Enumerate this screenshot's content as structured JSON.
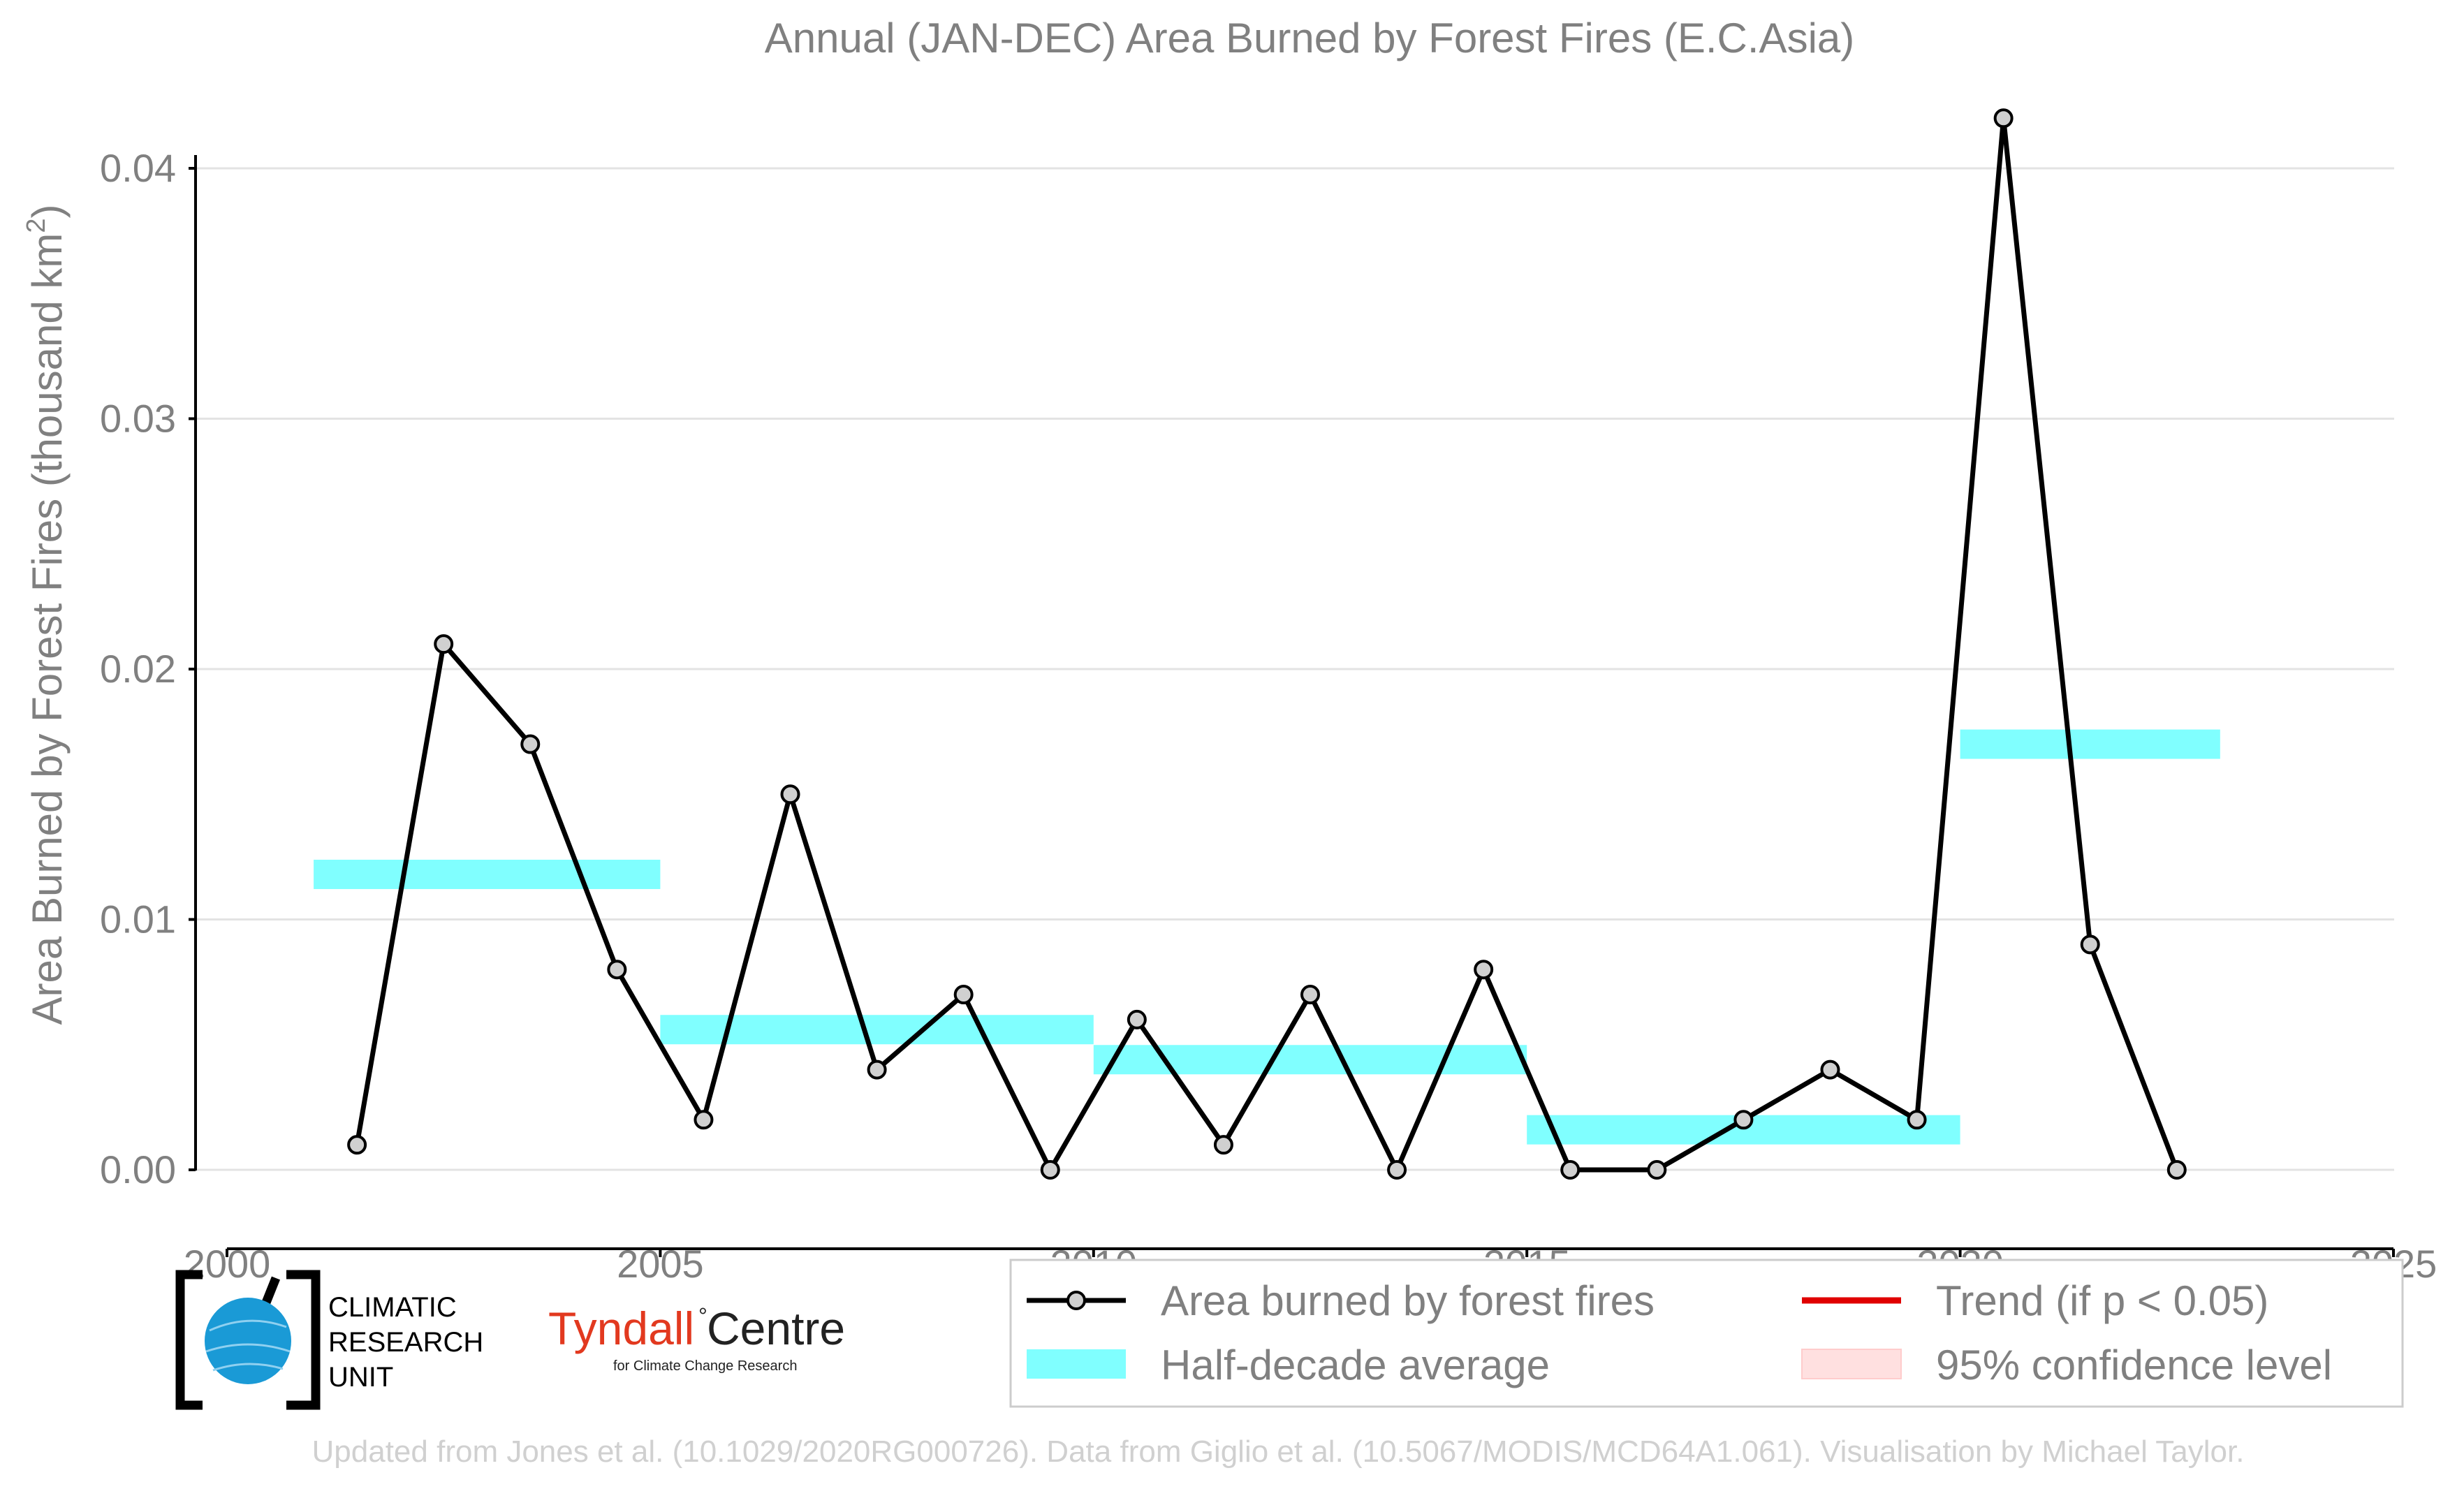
{
  "chart_data": {
    "type": "line",
    "title": "Annual (JAN-DEC) Area Burned by Forest Fires (E.C.Asia)",
    "ylabel": "Area Burned by Forest Fires (thousand km",
    "ylabel_sup": "2",
    "ylabel_close": ")",
    "xlim": [
      2000,
      2025
    ],
    "ylim": [
      -0.0035,
      0.043
    ],
    "x_ticks": [
      2000,
      2005,
      2010,
      2015,
      2020,
      2025
    ],
    "x_tick_labels": [
      "2000",
      "2005",
      "2010",
      "2015",
      "2020",
      "2025"
    ],
    "y_ticks": [
      0.0,
      0.01,
      0.02,
      0.03,
      0.04
    ],
    "y_tick_labels": [
      "0.00",
      "0.01",
      "0.02",
      "0.03",
      "0.04"
    ],
    "grid": true,
    "series": [
      {
        "name": "Area burned by forest fires",
        "color": "#000000",
        "marker_fill": "#d0d0d0",
        "x": [
          2001.5,
          2002.5,
          2003.5,
          2004.5,
          2005.5,
          2006.5,
          2007.5,
          2008.5,
          2009.5,
          2010.5,
          2011.5,
          2012.5,
          2013.5,
          2014.5,
          2015.5,
          2016.5,
          2017.5,
          2018.5,
          2019.5,
          2020.5,
          2021.5,
          2022.5
        ],
        "values": [
          0.001,
          0.021,
          0.017,
          0.008,
          0.002,
          0.015,
          0.004,
          0.007,
          0.0,
          0.006,
          0.001,
          0.007,
          0.0,
          0.008,
          0.0,
          0.0,
          0.002,
          0.004,
          0.002,
          0.042,
          0.009,
          0.0
        ]
      }
    ],
    "half_decade_averages": {
      "name": "Half-decade average",
      "color": "#80ffff",
      "segments": [
        {
          "x_start": 2001,
          "x_end": 2005,
          "value": 0.0118
        },
        {
          "x_start": 2005,
          "x_end": 2010,
          "value": 0.0056
        },
        {
          "x_start": 2010,
          "x_end": 2015,
          "value": 0.0044
        },
        {
          "x_start": 2015,
          "x_end": 2020,
          "value": 0.0016
        },
        {
          "x_start": 2020,
          "x_end": 2023,
          "value": 0.017
        }
      ]
    },
    "legend": {
      "placement": "bottom-right",
      "entries": [
        {
          "label": "Area burned by forest fires",
          "kind": "line-marker",
          "color": "#000000"
        },
        {
          "label": "Trend (if p < 0.05)",
          "kind": "line",
          "color": "#e00000"
        },
        {
          "label": "Half-decade average",
          "kind": "band",
          "color": "#80ffff"
        },
        {
          "label": "95% confidence level",
          "kind": "band",
          "color": "#ffe0e0"
        }
      ]
    }
  },
  "logos": {
    "cru": [
      "CLIMATIC",
      "RESEARCH",
      "UNIT"
    ],
    "tyndall_red": "Tyndall",
    "tyndall_black": "Centre",
    "tyndall_degree": "°",
    "tyndall_sub": "for Climate Change Research"
  },
  "footer": "Updated from Jones et al. (10.1029/2020RG000726). Data from Giglio et al. (10.5067/MODIS/MCD64A1.061). Visualisation by Michael Taylor."
}
